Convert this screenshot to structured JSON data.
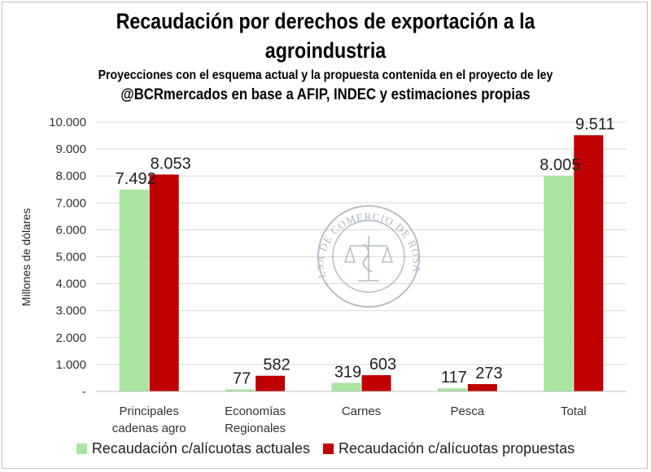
{
  "header": {
    "title_line1": "Recaudación por derechos de exportación a la",
    "title_line2": "agroindustria",
    "subtitle": "Proyecciones con el esquema actual y la propuesta contenida en el proyecto de ley",
    "source": "@BCRmercados en base a AFIP,  INDEC y estimaciones propias"
  },
  "watermark": {
    "text": "BOLSA DE COMERCIO DE ROSARIO"
  },
  "colors": {
    "actual": "#a9e5a0",
    "propuesta": "#c00000",
    "grid": "#d9d9d9"
  },
  "chart_data": {
    "type": "bar",
    "title": "Recaudación por derechos de exportación a la agroindustria",
    "ylabel": "Millones de dólares",
    "xlabel": "",
    "ylim": [
      0,
      10000
    ],
    "yticks": [
      0,
      1000,
      2000,
      3000,
      4000,
      5000,
      6000,
      7000,
      8000,
      9000,
      10000
    ],
    "ytick_labels": [
      "-",
      "1.000",
      "2.000",
      "3.000",
      "4.000",
      "5.000",
      "6.000",
      "7.000",
      "8.000",
      "9.000",
      "10.000"
    ],
    "categories": [
      [
        "Principales",
        "cadenas agro"
      ],
      [
        "Economías",
        "Regionales"
      ],
      [
        "Carnes"
      ],
      [
        "Pesca"
      ],
      [
        "Total"
      ]
    ],
    "series": [
      {
        "name": "Recaudación c/alícuotas actuales",
        "color": "#a9e5a0",
        "values": [
          7492,
          77,
          319,
          117,
          8005
        ],
        "labels": [
          "7.492",
          "77",
          "319",
          "117",
          "8.005"
        ]
      },
      {
        "name": "Recaudación c/alícuotas propuestas",
        "color": "#c00000",
        "values": [
          8053,
          582,
          603,
          273,
          9511
        ],
        "labels": [
          "8.053",
          "582",
          "603",
          "273",
          "9.511"
        ]
      }
    ],
    "legend_position": "bottom"
  }
}
